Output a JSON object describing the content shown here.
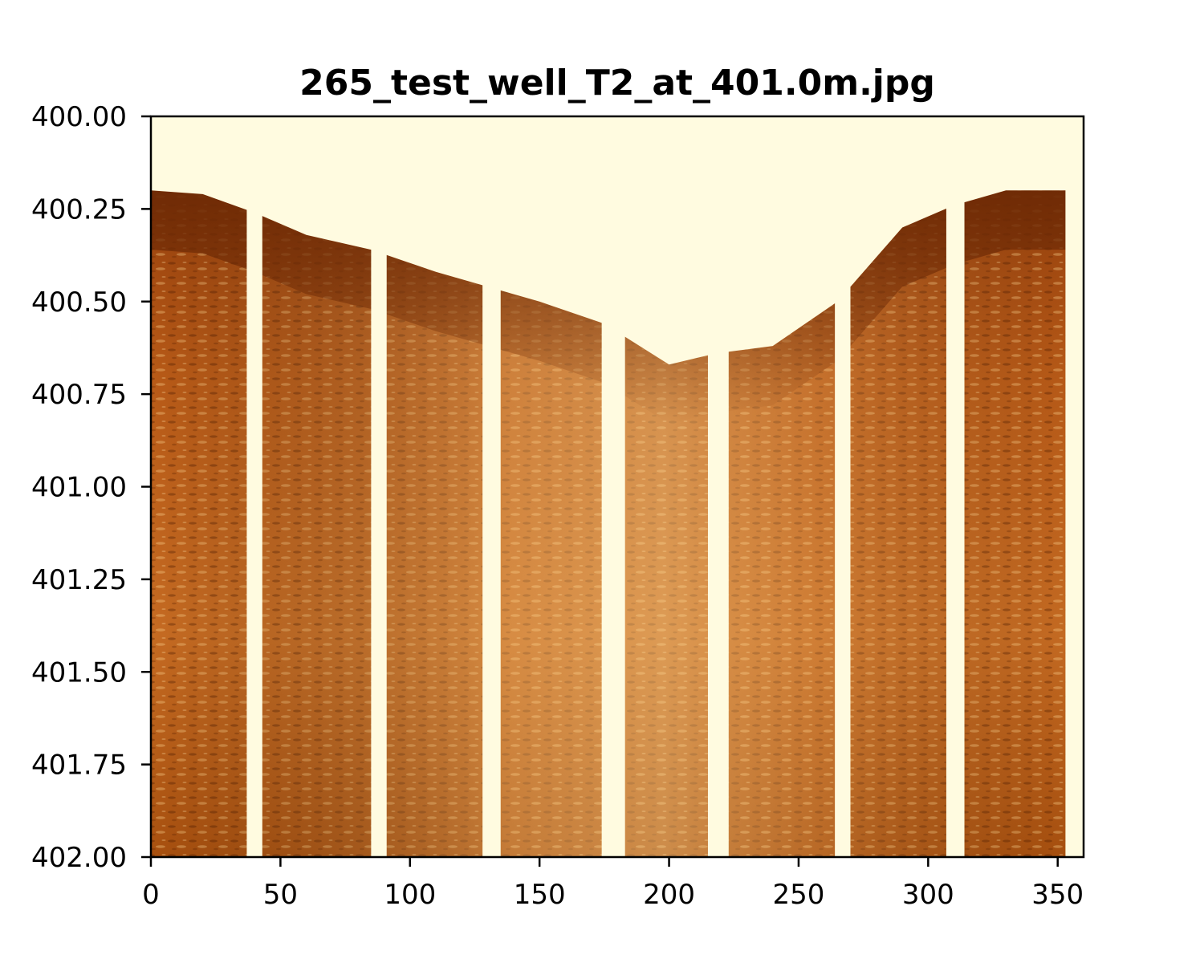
{
  "chart_data": {
    "type": "heatmap",
    "title": "265_test_well_T2_at_401.0m.jpg",
    "xlabel": "",
    "ylabel": "",
    "xlim": [
      0,
      360
    ],
    "ylim": [
      402.0,
      400.0
    ],
    "x_ticks": [
      "0",
      "50",
      "100",
      "150",
      "200",
      "250",
      "300",
      "350"
    ],
    "x_tick_values": [
      0,
      50,
      100,
      150,
      200,
      250,
      300,
      350
    ],
    "y_ticks": [
      "400.00",
      "400.25",
      "400.50",
      "400.75",
      "401.00",
      "401.25",
      "401.50",
      "401.75",
      "402.00"
    ],
    "y_tick_values": [
      400.0,
      400.25,
      400.5,
      400.75,
      401.0,
      401.25,
      401.5,
      401.75,
      402.0
    ],
    "colormap": "afmhot_r",
    "colors": {
      "light": "#fffbe0",
      "mid": "#e8923a",
      "dark": "#6e2a05"
    },
    "grid": false,
    "gap_strips_deg": [
      [
        37,
        43
      ],
      [
        85,
        91
      ],
      [
        128,
        135
      ],
      [
        174,
        183
      ],
      [
        215,
        223
      ],
      [
        264,
        270
      ],
      [
        307,
        314
      ],
      [
        353,
        360
      ]
    ],
    "dark_band_boundary": {
      "x": [
        0,
        20,
        40,
        60,
        85,
        110,
        130,
        150,
        175,
        200,
        218,
        240,
        265,
        290,
        310,
        330,
        353
      ],
      "depth": [
        400.2,
        400.21,
        400.26,
        400.32,
        400.36,
        400.42,
        400.46,
        400.5,
        400.56,
        400.67,
        400.64,
        400.62,
        400.5,
        400.3,
        400.24,
        400.2,
        400.2
      ]
    }
  }
}
